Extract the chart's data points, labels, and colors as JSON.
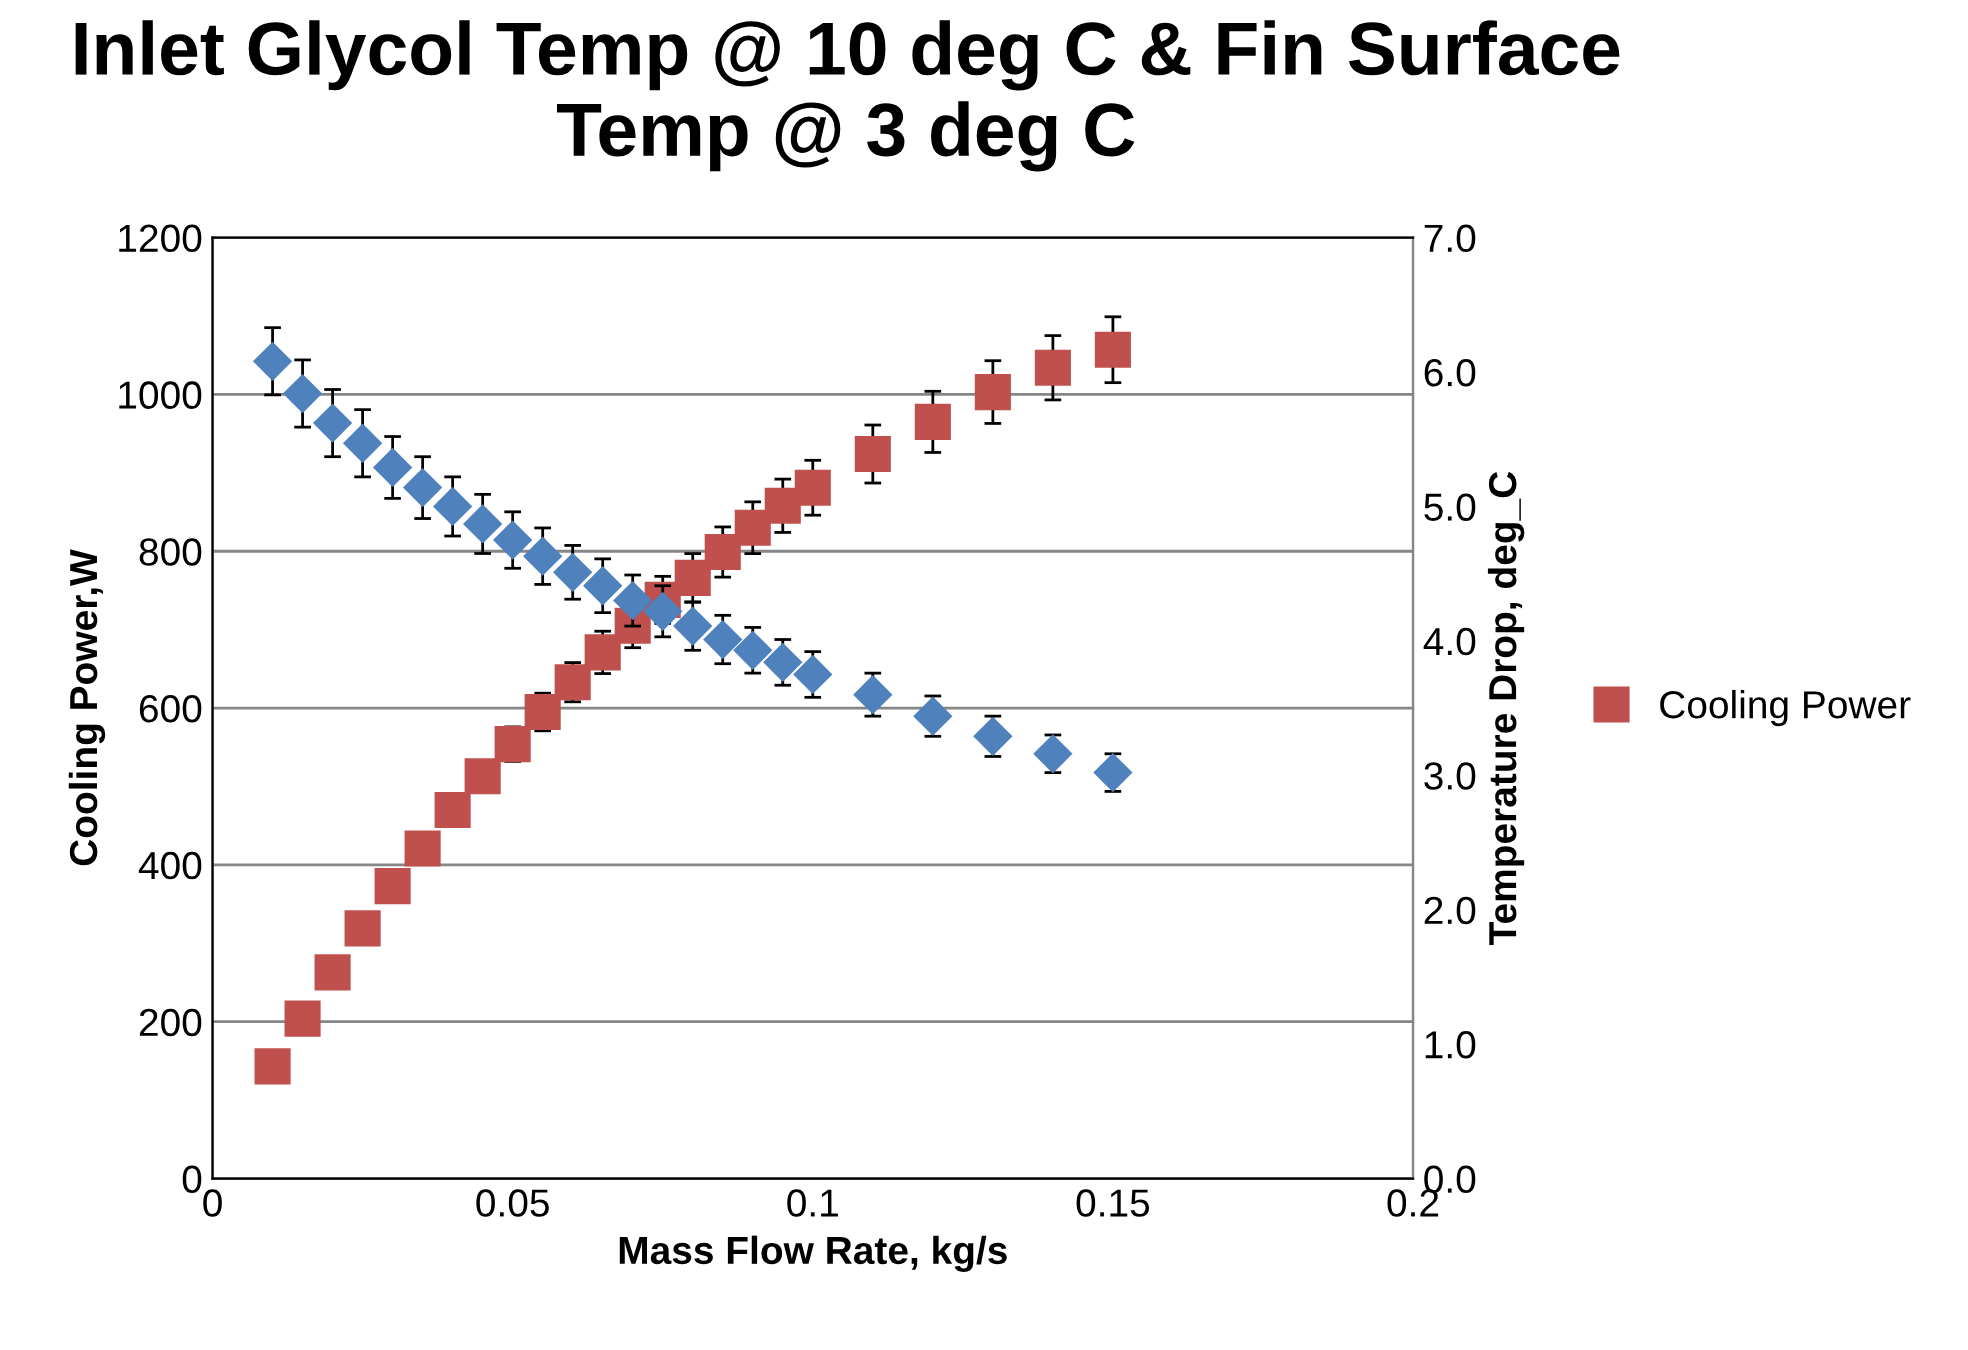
{
  "chart_data": {
    "type": "scatter",
    "title": "Inlet Glycol Temp @ 10 deg C & Fin Surface Temp @ 3 deg C",
    "xlabel": "Mass Flow Rate, kg/s",
    "ylabel": "Cooling Power,W",
    "y2label": "Temperature Drop, deg_C",
    "x": [
      0.01,
      0.015,
      0.02,
      0.025,
      0.03,
      0.035,
      0.04,
      0.045,
      0.05,
      0.055,
      0.06,
      0.065,
      0.07,
      0.075,
      0.08,
      0.085,
      0.09,
      0.095,
      0.1,
      0.11,
      0.12,
      0.13,
      0.14,
      0.15
    ],
    "series": [
      {
        "name": "Cooling Power",
        "color": "#c0504d",
        "marker": "square",
        "values": [
          143,
          204,
          263,
          319,
          373,
          421,
          470,
          513,
          554,
          595,
          633,
          671,
          705,
          738,
          766,
          799,
          830,
          858,
          881,
          924,
          965,
          1003,
          1034,
          1057
        ],
        "errors": [
          null,
          null,
          null,
          null,
          null,
          null,
          null,
          null,
          22,
          24,
          25,
          27,
          28,
          30,
          31,
          32,
          33,
          34,
          35,
          37,
          39,
          40,
          41,
          42
        ]
      },
      {
        "color": "#4f81bd",
        "marker": "diamond",
        "axis": "y2",
        "values": [
          6.08,
          5.84,
          5.62,
          5.47,
          5.29,
          5.14,
          5.0,
          4.87,
          4.75,
          4.63,
          4.51,
          4.41,
          4.3,
          4.22,
          4.11,
          4.01,
          3.93,
          3.84,
          3.75,
          3.6,
          3.44,
          3.29,
          3.16,
          3.02
        ],
        "errors": [
          0.25,
          0.25,
          0.25,
          0.25,
          0.23,
          0.23,
          0.22,
          0.22,
          0.21,
          0.21,
          0.2,
          0.2,
          0.19,
          0.19,
          0.18,
          0.18,
          0.17,
          0.17,
          0.17,
          0.16,
          0.15,
          0.15,
          0.14,
          0.14
        ]
      }
    ],
    "xlim": [
      0,
      0.2
    ],
    "xticks": [
      0,
      0.05,
      0.1,
      0.15,
      0.2
    ],
    "ylim": [
      0,
      1200
    ],
    "yticks": [
      0,
      200,
      400,
      600,
      800,
      1000,
      1200
    ],
    "y2lim": [
      0,
      7.0
    ],
    "y2ticks": [
      {
        "value": 0,
        "label": "0.0"
      },
      {
        "value": 1,
        "label": "1.0"
      },
      {
        "value": 2,
        "label": "2.0"
      },
      {
        "value": 3,
        "label": "3.0"
      },
      {
        "value": 4,
        "label": "4.0"
      },
      {
        "value": 5,
        "label": "5.0"
      },
      {
        "value": 6,
        "label": "6.0"
      },
      {
        "value": 7,
        "label": "7.0"
      }
    ],
    "grid": "y",
    "legend": "right"
  }
}
